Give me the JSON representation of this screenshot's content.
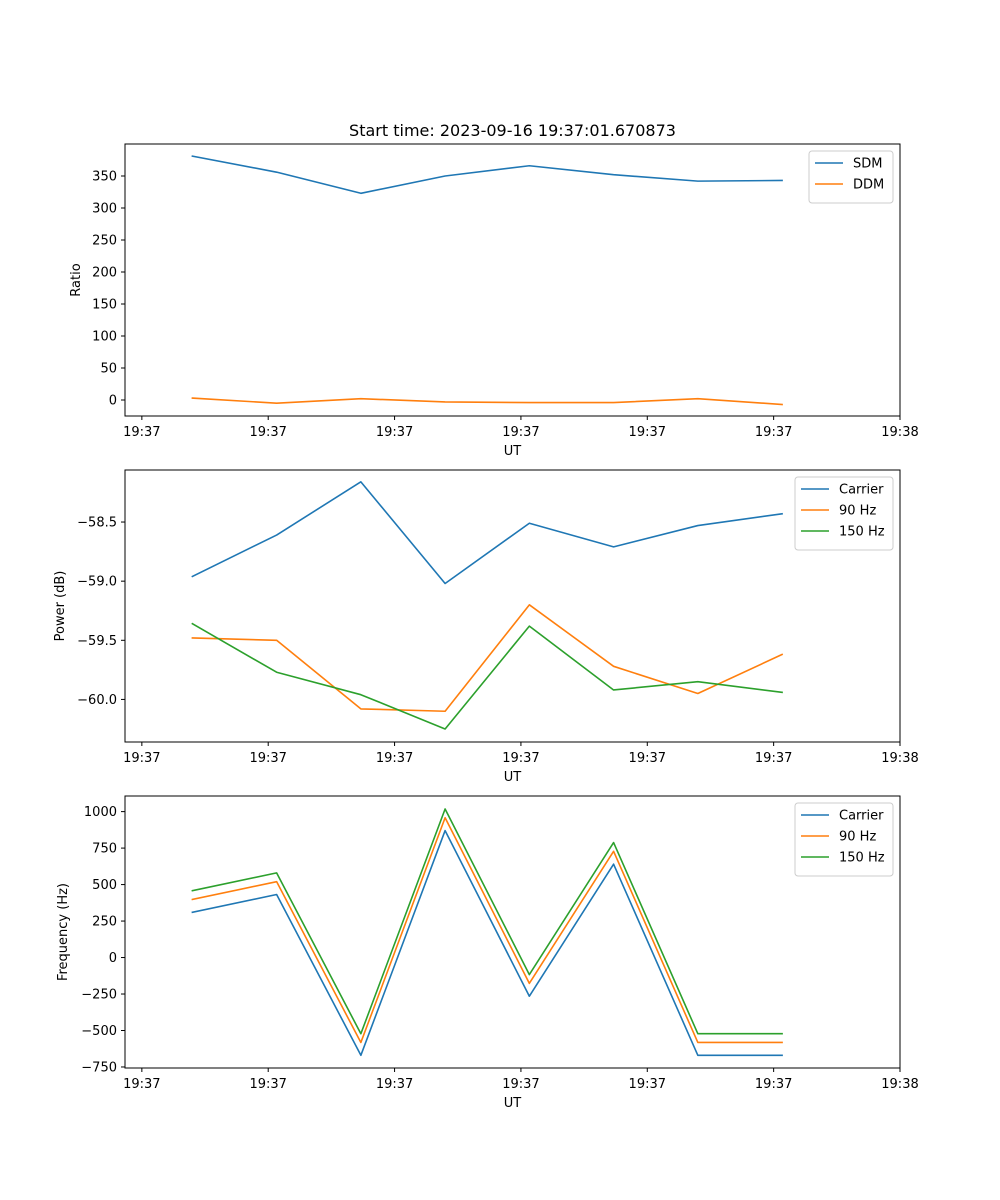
{
  "figure": {
    "title": "Start time: 2023-09-16 19:37:01.670873"
  },
  "chart_data": [
    {
      "type": "line",
      "title": "Start time: 2023-09-16 19:37:01.670873",
      "xlabel": "UT",
      "ylabel": "Ratio",
      "x": [
        1,
        2,
        3,
        4,
        5,
        6,
        7,
        8
      ],
      "xlim": [
        0.2,
        9.4
      ],
      "xticks": [
        0.4,
        1.9,
        3.4,
        4.9,
        6.4,
        7.9,
        9.4
      ],
      "xtick_labels": [
        "19:37",
        "19:37",
        "19:37",
        "19:37",
        "19:37",
        "19:37",
        "19:38"
      ],
      "ylim": [
        -25,
        400
      ],
      "yticks": [
        0,
        50,
        100,
        150,
        200,
        250,
        300,
        350
      ],
      "ytick_labels": [
        "0",
        "50",
        "100",
        "150",
        "200",
        "250",
        "300",
        "350"
      ],
      "legend_position": "top-right",
      "series": [
        {
          "name": "SDM",
          "color": "#1f77b4",
          "values": [
            381,
            356,
            323,
            350,
            366,
            352,
            342,
            343
          ]
        },
        {
          "name": "DDM",
          "color": "#ff7f0e",
          "values": [
            3,
            -5,
            2,
            -3,
            -4,
            -4,
            2,
            -7
          ]
        }
      ]
    },
    {
      "type": "line",
      "title": "",
      "xlabel": "UT",
      "ylabel": "Power (dB)",
      "x": [
        1,
        2,
        3,
        4,
        5,
        6,
        7,
        8
      ],
      "xlim": [
        0.2,
        9.4
      ],
      "xticks": [
        0.4,
        1.9,
        3.4,
        4.9,
        6.4,
        7.9,
        9.4
      ],
      "xtick_labels": [
        "19:37",
        "19:37",
        "19:37",
        "19:37",
        "19:37",
        "19:37",
        "19:38"
      ],
      "ylim": [
        -60.36,
        -58.06
      ],
      "yticks": [
        -60.0,
        -59.5,
        -59.0,
        -58.5
      ],
      "ytick_labels": [
        "−60.0",
        "−59.5",
        "−59.0",
        "−58.5"
      ],
      "legend_position": "top-right",
      "series": [
        {
          "name": "Carrier",
          "color": "#1f77b4",
          "values": [
            -58.96,
            -58.61,
            -58.16,
            -59.02,
            -58.51,
            -58.71,
            -58.53,
            -58.43
          ]
        },
        {
          "name": "90 Hz",
          "color": "#ff7f0e",
          "values": [
            -59.48,
            -59.5,
            -60.08,
            -60.1,
            -59.2,
            -59.72,
            -59.95,
            -59.62
          ]
        },
        {
          "name": "150 Hz",
          "color": "#2ca02c",
          "values": [
            -59.36,
            -59.77,
            -59.96,
            -60.25,
            -59.38,
            -59.92,
            -59.85,
            -59.94
          ]
        }
      ]
    },
    {
      "type": "line",
      "title": "",
      "xlabel": "UT",
      "ylabel": "Frequency (Hz)",
      "x": [
        1,
        2,
        3,
        4,
        5,
        6,
        7,
        8
      ],
      "xlim": [
        0.2,
        9.4
      ],
      "xticks": [
        0.4,
        1.9,
        3.4,
        4.9,
        6.4,
        7.9,
        9.4
      ],
      "xtick_labels": [
        "19:37",
        "19:37",
        "19:37",
        "19:37",
        "19:37",
        "19:37",
        "19:38"
      ],
      "ylim": [
        -757,
        1107
      ],
      "yticks": [
        -750,
        -500,
        -250,
        0,
        250,
        500,
        750,
        1000
      ],
      "ytick_labels": [
        "−750",
        "−500",
        "−250",
        "0",
        "250",
        "500",
        "750",
        "1000"
      ],
      "legend_position": "top-right",
      "series": [
        {
          "name": "Carrier",
          "color": "#1f77b4",
          "values": [
            310,
            432,
            -670,
            870,
            -265,
            640,
            -670,
            -670
          ]
        },
        {
          "name": "90 Hz",
          "color": "#ff7f0e",
          "values": [
            398,
            520,
            -582,
            958,
            -177,
            728,
            -582,
            -582
          ]
        },
        {
          "name": "150 Hz",
          "color": "#2ca02c",
          "values": [
            458,
            580,
            -522,
            1018,
            -117,
            788,
            -522,
            -522
          ]
        }
      ]
    }
  ]
}
